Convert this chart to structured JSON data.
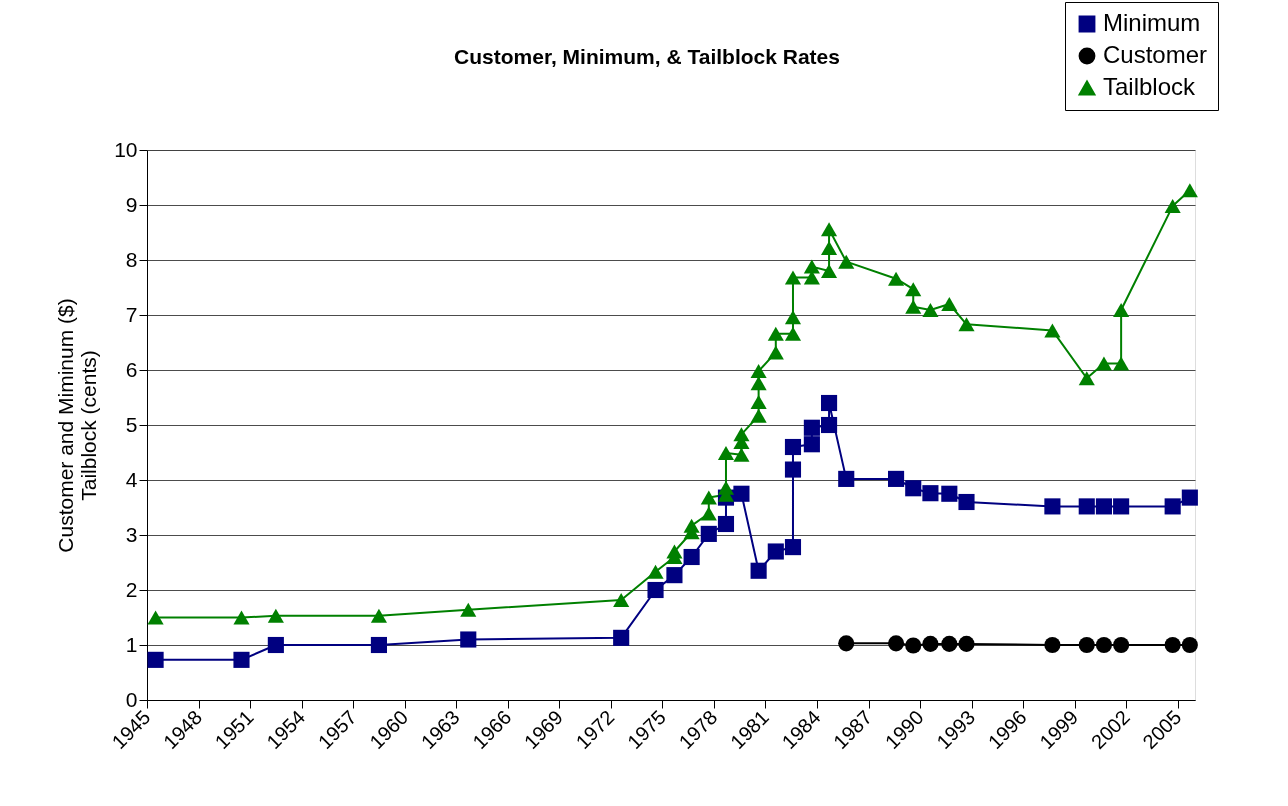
{
  "chart_data": {
    "type": "line",
    "title": "Customer, Minimum, & Tailblock Rates",
    "ylabel": "Customer and Miminum ($)\nTailblock (cents)",
    "xlim": [
      1945,
      2006
    ],
    "xticks": [
      1945,
      1948,
      1951,
      1954,
      1957,
      1960,
      1963,
      1966,
      1969,
      1972,
      1975,
      1978,
      1981,
      1984,
      1987,
      1990,
      1993,
      1996,
      1999,
      2002,
      2005
    ],
    "ylim": [
      0,
      10
    ],
    "yticks": [
      0,
      1,
      2,
      3,
      4,
      5,
      6,
      7,
      8,
      9,
      10
    ],
    "grid": "y",
    "legend": "top right",
    "line_style": "solid",
    "series": [
      {
        "name": "Minimum",
        "color": "#000080",
        "marker": "square",
        "x": [
          1945.5,
          1950.5,
          1952.5,
          1958.5,
          1963.7,
          1972.6,
          1974.6,
          1975.7,
          1976.7,
          1977.7,
          1978.7,
          1978.7,
          1979.6,
          1980.6,
          1981.6,
          1982.6,
          1982.6,
          1982.6,
          1983.7,
          1983.7,
          1984.7,
          1984.7,
          1985.7,
          1988.6,
          1989.6,
          1990.6,
          1991.7,
          1992.7,
          1997.7,
          1999.7,
          2000.7,
          2001.7,
          2004.7,
          2005.7
        ],
        "values": [
          0.73,
          0.73,
          1.0,
          1.0,
          1.1,
          1.13,
          2.0,
          2.27,
          2.6,
          3.02,
          3.2,
          3.68,
          3.75,
          2.35,
          2.7,
          2.78,
          4.19,
          4.6,
          4.65,
          4.95,
          5.0,
          5.4,
          4.02,
          4.02,
          3.85,
          3.76,
          3.75,
          3.6,
          3.52,
          3.52,
          3.52,
          3.52,
          3.52,
          3.68
        ]
      },
      {
        "name": "Customer",
        "color": "#000000",
        "marker": "circle",
        "x": [
          1985.7,
          1988.6,
          1989.6,
          1990.6,
          1991.7,
          1992.7,
          1997.7,
          1999.7,
          2000.7,
          2001.7,
          2004.7,
          2005.7
        ],
        "values": [
          1.03,
          1.03,
          0.99,
          1.02,
          1.02,
          1.02,
          1.0,
          1.0,
          1.0,
          1.0,
          1.0,
          1.0
        ]
      },
      {
        "name": "Tailblock",
        "color": "#008000",
        "marker": "triangle",
        "x": [
          1945.5,
          1950.5,
          1952.5,
          1958.5,
          1963.7,
          1972.6,
          1974.6,
          1975.7,
          1975.7,
          1976.7,
          1976.7,
          1977.7,
          1977.7,
          1978.7,
          1978.7,
          1978.7,
          1979.6,
          1979.6,
          1979.6,
          1980.6,
          1980.6,
          1980.6,
          1980.6,
          1981.6,
          1981.6,
          1982.6,
          1982.6,
          1982.6,
          1983.7,
          1983.7,
          1984.7,
          1984.7,
          1984.7,
          1985.7,
          1988.6,
          1989.6,
          1989.6,
          1990.6,
          1991.7,
          1992.7,
          1997.7,
          1999.7,
          2000.7,
          2001.7,
          2001.7,
          2004.7,
          2005.7
        ],
        "values": [
          1.5,
          1.5,
          1.53,
          1.53,
          1.64,
          1.82,
          2.33,
          2.6,
          2.7,
          3.05,
          3.17,
          3.39,
          3.68,
          3.73,
          3.86,
          4.49,
          4.46,
          4.69,
          4.83,
          5.17,
          5.42,
          5.76,
          5.98,
          6.32,
          6.66,
          6.66,
          6.96,
          7.68,
          7.68,
          7.88,
          7.8,
          8.22,
          8.56,
          7.97,
          7.66,
          7.47,
          7.15,
          7.09,
          7.2,
          6.83,
          6.72,
          5.85,
          6.12,
          6.12,
          7.09,
          8.98,
          9.27
        ]
      }
    ]
  }
}
